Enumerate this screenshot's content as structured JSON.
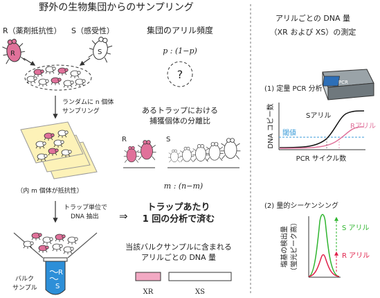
{
  "left": {
    "title": "野外の生物集団からのサンプリング",
    "resistant_label": "R（薬剤抵抗性）",
    "susceptible_label": "S（感受性）",
    "insect_r": "R",
    "insect_s": "S",
    "step1": [
      "ランダムに n 個体",
      "サンプリング"
    ],
    "trap_note": "（内 m 個体が抵抗性）",
    "step2": [
      "トラップ単位で",
      "DNA 抽出"
    ],
    "result_arrow": "⇒",
    "result": [
      "トラップあたり",
      "1 回の分析で済む"
    ],
    "bulk_label": [
      "バルク",
      "サンプル"
    ],
    "tube_r": "R",
    "tube_s": "S",
    "allele_freq_title": "集団のアリル頻度",
    "allele_freq_value": "p : (1−p)",
    "unknown_mark": "?",
    "trap_ratio_title": [
      "あるトラップにおける",
      "捕獲個体の分離比"
    ],
    "group_r": "R",
    "group_s": "S",
    "ratio_value": "m : (n−m)",
    "bulk_dna_title": [
      "当該バルクサンプルに含まれる",
      "アリルごとの DNA 量"
    ],
    "xr_label": "XR",
    "xs_label": "XS"
  },
  "right": {
    "title": [
      "アリルごとの DNA 量",
      "（XR および XS）の測定"
    ],
    "qpcr_title": "(1) 定量 PCR 分析",
    "machine_label": "PCR",
    "y_axis": "DNA コピー数",
    "threshold": "閾値",
    "s_allele": "Sアリル",
    "r_allele": "Rアリル",
    "x_axis": "PCR サイクル数",
    "seq_title": "(2) 量的シーケンシング",
    "seq_y_axis": [
      "塩基の検出量",
      "（蛍光ピーク高）"
    ],
    "seq_s": "S アリル",
    "seq_r": "R アリル"
  },
  "colors": {
    "resistant": "#e0719a",
    "resistant_light": "#f2a9c3",
    "susceptible": "#ffffff",
    "threshold": "#3a9bd8",
    "peak_green": "#2fb52f",
    "peak_red": "#e0204a",
    "trap": "#fdf2b8",
    "tube": "#2d8fd8"
  }
}
